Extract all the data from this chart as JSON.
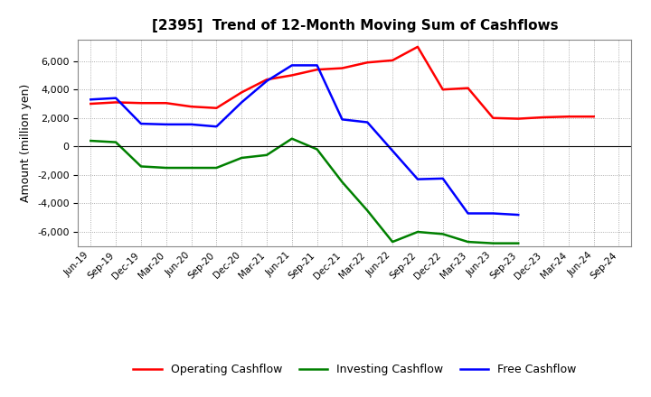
{
  "title": "[2395]  Trend of 12-Month Moving Sum of Cashflows",
  "ylabel": "Amount (million yen)",
  "x_labels": [
    "Jun-19",
    "Sep-19",
    "Dec-19",
    "Mar-20",
    "Jun-20",
    "Sep-20",
    "Dec-20",
    "Mar-21",
    "Jun-21",
    "Sep-21",
    "Dec-21",
    "Mar-22",
    "Jun-22",
    "Sep-22",
    "Dec-22",
    "Mar-23",
    "Jun-23",
    "Sep-23",
    "Dec-23",
    "Mar-24",
    "Jun-24",
    "Sep-24"
  ],
  "operating": [
    3000,
    3100,
    3050,
    3050,
    2800,
    2700,
    3800,
    4700,
    5000,
    5400,
    5500,
    5900,
    6050,
    7000,
    4000,
    4100,
    2000,
    1950,
    2050,
    2100,
    2100,
    null
  ],
  "investing": [
    400,
    300,
    -1400,
    -1500,
    -1500,
    -1500,
    -800,
    -600,
    550,
    -200,
    -2500,
    -4500,
    -6700,
    -6000,
    -6150,
    -6700,
    -6800,
    -6800,
    null,
    null,
    null,
    null
  ],
  "free": [
    3300,
    3400,
    1600,
    1550,
    1550,
    1400,
    3100,
    4600,
    5700,
    5700,
    1900,
    1700,
    -300,
    -2300,
    -2250,
    -4700,
    -4700,
    -4800,
    null,
    null,
    null,
    null
  ],
  "ylim": [
    -7000,
    7500
  ],
  "yticks": [
    -6000,
    -4000,
    -2000,
    0,
    2000,
    4000,
    6000
  ],
  "legend_labels": [
    "Operating Cashflow",
    "Investing Cashflow",
    "Free Cashflow"
  ],
  "line_colors": [
    "#ff0000",
    "#008000",
    "#0000ff"
  ],
  "background_color": "#ffffff",
  "grid_color": "#999999"
}
